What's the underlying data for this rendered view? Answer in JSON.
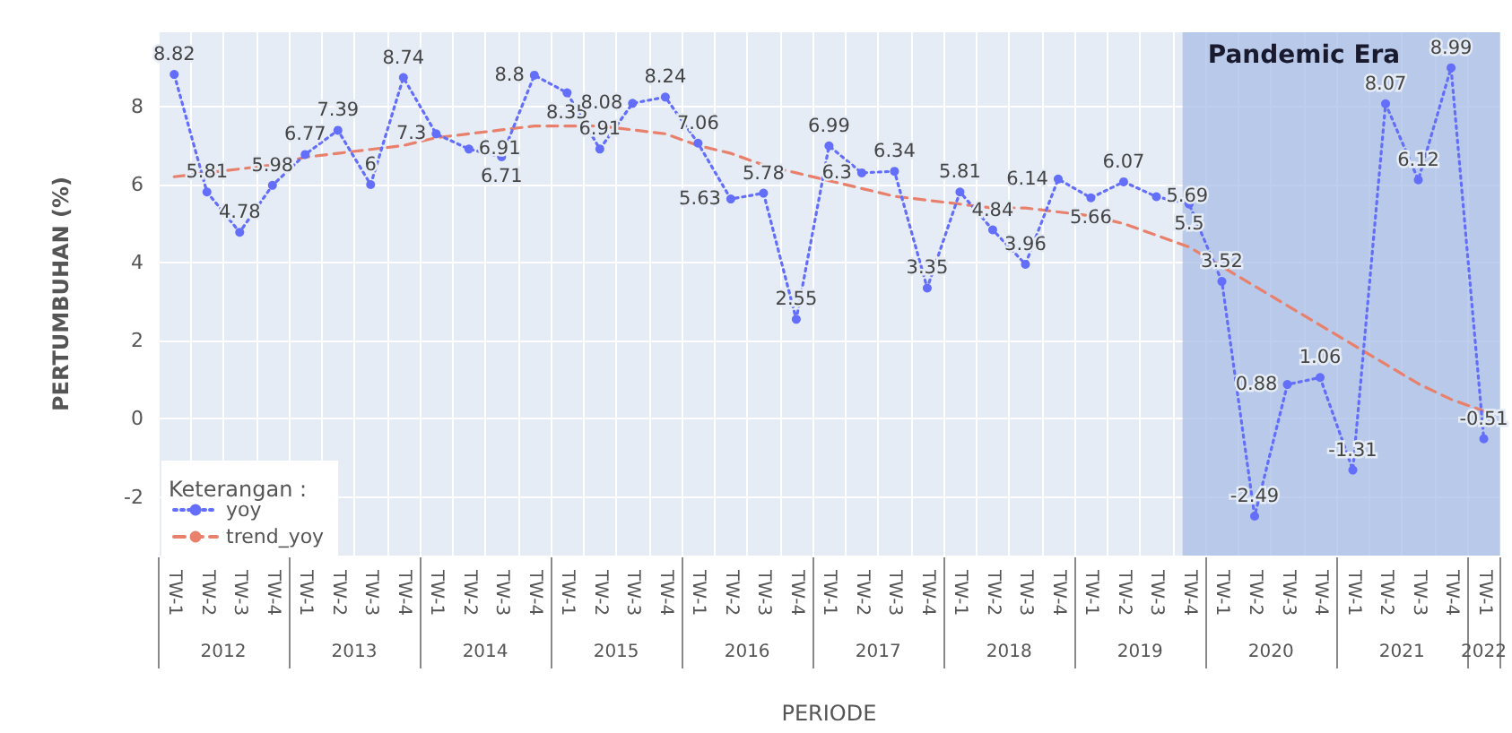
{
  "chart_data": {
    "type": "line",
    "xlabel": "PERIODE",
    "ylabel": "PERTUMBUHAN (%)",
    "legend_title": "Keterangan :",
    "categories": [
      "TW-1",
      "TW-2",
      "TW-3",
      "TW-4",
      "TW-1",
      "TW-2",
      "TW-3",
      "TW-4",
      "TW-1",
      "TW-2",
      "TW-3",
      "TW-4",
      "TW-1",
      "TW-2",
      "TW-3",
      "TW-4",
      "TW-1",
      "TW-2",
      "TW-3",
      "TW-4",
      "TW-1",
      "TW-2",
      "TW-3",
      "TW-4",
      "TW-1",
      "TW-2",
      "TW-3",
      "TW-4",
      "TW-1",
      "TW-2",
      "TW-3",
      "TW-4",
      "TW-1",
      "TW-2",
      "TW-3",
      "TW-4",
      "TW-1",
      "TW-2",
      "TW-3",
      "TW-4",
      "TW-1"
    ],
    "series": [
      {
        "name": "yoy",
        "color": "#636efa",
        "marker": "circle",
        "line_style": "dotted",
        "data_labels": true,
        "values": [
          8.82,
          5.81,
          4.78,
          5.98,
          6.77,
          7.39,
          6.0,
          8.74,
          7.3,
          6.91,
          6.71,
          8.8,
          8.35,
          6.91,
          8.08,
          8.24,
          7.06,
          5.63,
          5.78,
          2.55,
          6.99,
          6.3,
          6.34,
          3.35,
          5.81,
          4.84,
          3.96,
          6.14,
          5.66,
          6.07,
          5.69,
          5.5,
          3.52,
          -2.49,
          0.88,
          1.06,
          -1.31,
          8.07,
          6.12,
          8.99,
          -0.51
        ]
      },
      {
        "name": "trend_yoy",
        "color": "#e8806b",
        "marker": "none",
        "line_style": "dashed",
        "values": [
          6.2,
          6.3,
          6.4,
          6.5,
          6.7,
          6.8,
          6.9,
          7.0,
          7.2,
          7.3,
          7.4,
          7.5,
          7.5,
          7.5,
          7.4,
          7.3,
          7.0,
          6.8,
          6.5,
          6.3,
          6.1,
          5.9,
          5.7,
          5.6,
          5.5,
          5.4,
          5.4,
          5.3,
          5.2,
          5.0,
          4.7,
          4.4,
          3.9,
          3.4,
          2.9,
          2.4,
          1.9,
          1.4,
          0.9,
          0.5,
          0.2
        ]
      }
    ],
    "ylim": [
      -3.5,
      9.9
    ],
    "yticks": [
      -2,
      0,
      2,
      4,
      6,
      8
    ],
    "grid": true,
    "legend": "bottom left",
    "annotations": [
      "Pandemic Era",
      "2012",
      "2013",
      "2014",
      "2015",
      "2016",
      "2017",
      "2018",
      "2019",
      "2020",
      "2021",
      "2022"
    ]
  }
}
